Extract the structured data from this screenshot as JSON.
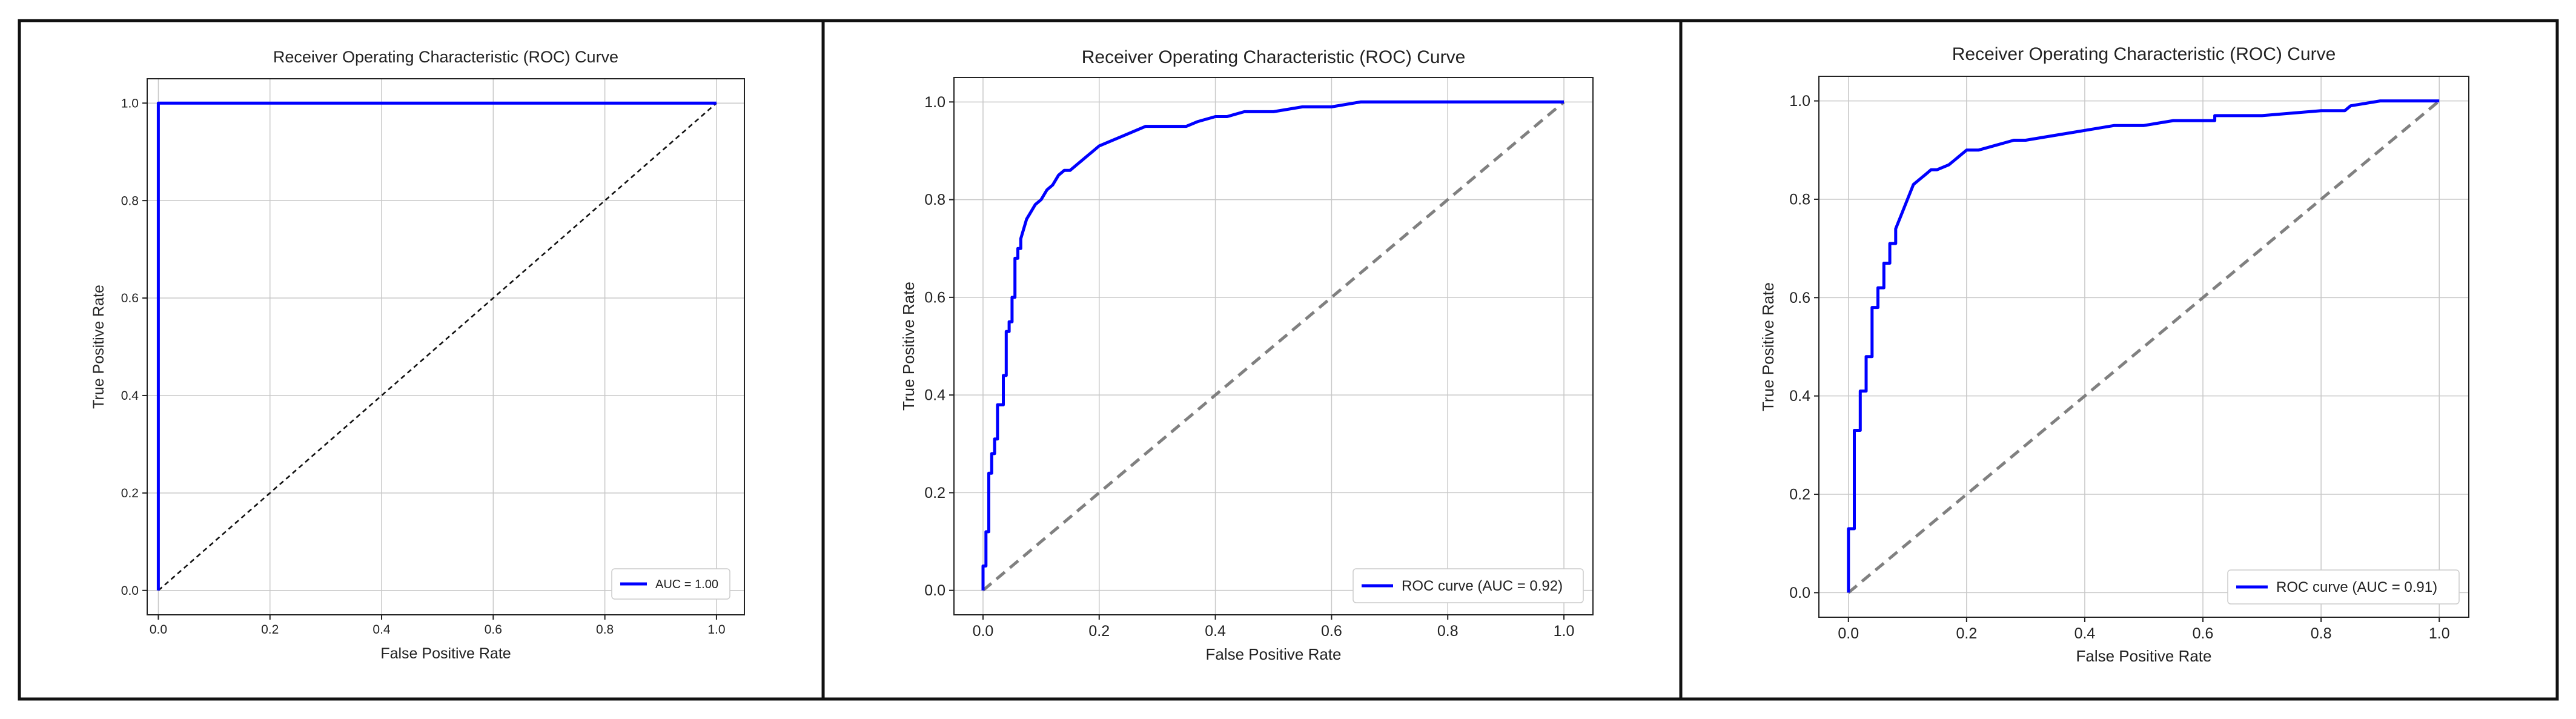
{
  "chart_data": [
    {
      "type": "line",
      "title": "Receiver Operating Characteristic (ROC) Curve",
      "xlabel": "False Positive Rate",
      "ylabel": "True Positive Rate",
      "xlim": [
        -0.02,
        1.05
      ],
      "ylim": [
        -0.05,
        1.05
      ],
      "xticks": [
        "0.0",
        "0.2",
        "0.4",
        "0.6",
        "0.8",
        "1.0"
      ],
      "yticks": [
        "0.0",
        "0.2",
        "0.4",
        "0.6",
        "0.8",
        "1.0"
      ],
      "grid": true,
      "legend_position": "bottom-right",
      "series": [
        {
          "name": "AUC = 1.00",
          "color": "#0000ff",
          "x": [
            0.0,
            0.0,
            1.0
          ],
          "y": [
            0.0,
            1.0,
            1.0
          ]
        }
      ],
      "diagonal": {
        "x": [
          0.0,
          1.0
        ],
        "y": [
          0.0,
          1.0
        ],
        "color": "#111111",
        "style": "dashed"
      }
    },
    {
      "type": "line",
      "title": "Receiver Operating Characteristic (ROC) Curve",
      "xlabel": "False Positive Rate",
      "ylabel": "True Positive Rate",
      "xlim": [
        -0.05,
        1.05
      ],
      "ylim": [
        -0.05,
        1.05
      ],
      "xticks": [
        "0.0",
        "0.2",
        "0.4",
        "0.6",
        "0.8",
        "1.0"
      ],
      "yticks": [
        "0.0",
        "0.2",
        "0.4",
        "0.6",
        "0.8",
        "1.0"
      ],
      "grid": true,
      "legend_position": "bottom-right",
      "series": [
        {
          "name": "ROC curve (AUC = 0.92)",
          "color": "#0000ff",
          "x": [
            0.0,
            0.0,
            0.005,
            0.005,
            0.01,
            0.01,
            0.015,
            0.015,
            0.02,
            0.02,
            0.025,
            0.025,
            0.03,
            0.03,
            0.035,
            0.035,
            0.04,
            0.04,
            0.045,
            0.045,
            0.05,
            0.05,
            0.055,
            0.055,
            0.06,
            0.06,
            0.065,
            0.065,
            0.07,
            0.075,
            0.08,
            0.09,
            0.1,
            0.11,
            0.12,
            0.13,
            0.14,
            0.15,
            0.16,
            0.17,
            0.18,
            0.19,
            0.2,
            0.22,
            0.24,
            0.26,
            0.28,
            0.3,
            0.35,
            0.37,
            0.4,
            0.42,
            0.45,
            0.5,
            0.55,
            0.6,
            0.65,
            0.7,
            0.8,
            0.9,
            1.0
          ],
          "y": [
            0.0,
            0.05,
            0.05,
            0.12,
            0.12,
            0.24,
            0.24,
            0.28,
            0.28,
            0.31,
            0.31,
            0.38,
            0.38,
            0.38,
            0.38,
            0.44,
            0.44,
            0.53,
            0.53,
            0.55,
            0.55,
            0.6,
            0.6,
            0.68,
            0.68,
            0.7,
            0.7,
            0.72,
            0.74,
            0.76,
            0.77,
            0.79,
            0.8,
            0.82,
            0.83,
            0.85,
            0.86,
            0.86,
            0.87,
            0.88,
            0.89,
            0.9,
            0.91,
            0.92,
            0.93,
            0.94,
            0.95,
            0.95,
            0.95,
            0.96,
            0.97,
            0.97,
            0.98,
            0.98,
            0.99,
            0.99,
            1.0,
            1.0,
            1.0,
            1.0,
            1.0
          ]
        }
      ],
      "diagonal": {
        "x": [
          0.0,
          1.0
        ],
        "y": [
          0.0,
          1.0
        ],
        "color": "#808080",
        "style": "dashed"
      }
    },
    {
      "type": "line",
      "title": "Receiver Operating Characteristic (ROC) Curve",
      "xlabel": "False Positive Rate",
      "ylabel": "True Positive Rate",
      "xlim": [
        -0.05,
        1.05
      ],
      "ylim": [
        -0.05,
        1.05
      ],
      "xticks": [
        "0.0",
        "0.2",
        "0.4",
        "0.6",
        "0.8",
        "1.0"
      ],
      "yticks": [
        "0.0",
        "0.2",
        "0.4",
        "0.6",
        "0.8",
        "1.0"
      ],
      "grid": true,
      "legend_position": "bottom-right",
      "series": [
        {
          "name": "ROC curve (AUC = 0.91)",
          "color": "#0000ff",
          "x": [
            0.0,
            0.0,
            0.01,
            0.01,
            0.02,
            0.02,
            0.03,
            0.03,
            0.04,
            0.04,
            0.05,
            0.05,
            0.06,
            0.06,
            0.07,
            0.07,
            0.08,
            0.08,
            0.09,
            0.1,
            0.11,
            0.12,
            0.13,
            0.14,
            0.15,
            0.17,
            0.18,
            0.19,
            0.2,
            0.22,
            0.25,
            0.28,
            0.3,
            0.35,
            0.4,
            0.45,
            0.5,
            0.55,
            0.6,
            0.62,
            0.62,
            0.7,
            0.8,
            0.84,
            0.85,
            0.9,
            1.0
          ],
          "y": [
            0.0,
            0.13,
            0.13,
            0.33,
            0.33,
            0.41,
            0.41,
            0.48,
            0.48,
            0.58,
            0.58,
            0.62,
            0.62,
            0.67,
            0.67,
            0.71,
            0.71,
            0.74,
            0.77,
            0.8,
            0.83,
            0.84,
            0.85,
            0.86,
            0.86,
            0.87,
            0.88,
            0.89,
            0.9,
            0.9,
            0.91,
            0.92,
            0.92,
            0.93,
            0.94,
            0.95,
            0.95,
            0.96,
            0.96,
            0.96,
            0.97,
            0.97,
            0.98,
            0.98,
            0.99,
            1.0,
            1.0
          ]
        }
      ],
      "diagonal": {
        "x": [
          0.0,
          1.0
        ],
        "y": [
          0.0,
          1.0
        ],
        "color": "#808080",
        "style": "dashed"
      }
    }
  ]
}
